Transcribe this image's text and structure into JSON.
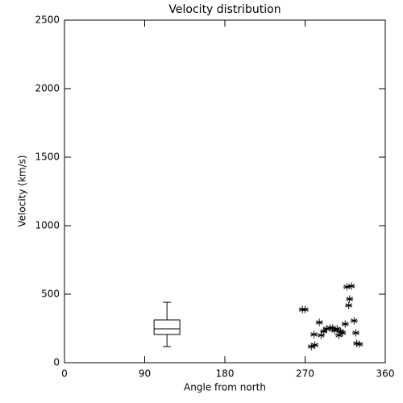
{
  "chart_data": {
    "type": "scatter",
    "title": "Velocity distribution",
    "x_label": "Angle from north",
    "y_label": "Velocity (km/s)",
    "xlim": [
      0,
      360
    ],
    "xticks": [
      0,
      90,
      180,
      270,
      360
    ],
    "ylim": [
      0,
      2500
    ],
    "yticks": [
      0,
      500,
      1000,
      1500,
      2000,
      2500
    ],
    "color": "#000000",
    "marker": "asterisk",
    "x": [
      267,
      270,
      277,
      281,
      280,
      286,
      288,
      291,
      294,
      298,
      301,
      303,
      306,
      308,
      310,
      312,
      315,
      317,
      322,
      319,
      320,
      325,
      327,
      328,
      331
    ],
    "values": [
      388,
      388,
      118,
      129,
      206,
      294,
      200,
      229,
      247,
      253,
      253,
      235,
      247,
      200,
      229,
      218,
      282,
      553,
      559,
      418,
      465,
      306,
      218,
      141,
      135
    ],
    "box": {
      "position": 115,
      "whisker_low": 118,
      "q1": 206,
      "median": 247,
      "q3": 312,
      "whisker_high": 441
    }
  }
}
